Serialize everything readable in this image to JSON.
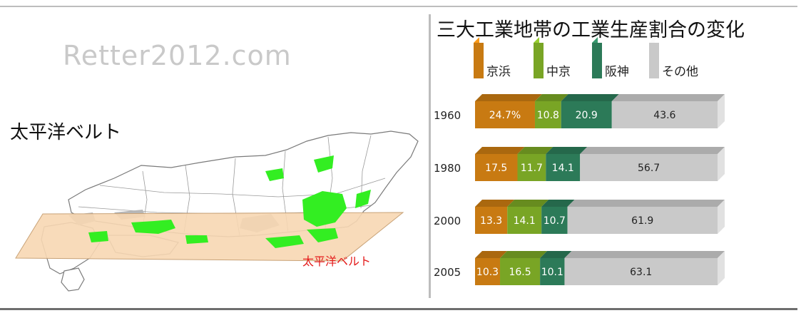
{
  "watermark": "Retter2012.com",
  "map": {
    "title": "太平洋ベルト",
    "belt_label": "太平洋ベルト"
  },
  "colors": {
    "keihin": "#c87a12",
    "chukyo": "#79a525",
    "hanshin": "#2c7a58",
    "other": "#c9c9c9",
    "belt": "#f7d7b2",
    "industrial": "#33ee22",
    "belt_label": "#e41b1b"
  },
  "chart_data": {
    "type": "bar",
    "orientation": "horizontal-stacked",
    "title": "三大工業地帯の工業生産割合の変化",
    "categories": [
      "1960",
      "1980",
      "2000",
      "2005"
    ],
    "series": [
      {
        "name": "京浜",
        "values": [
          24.7,
          17.5,
          13.3,
          10.3
        ],
        "labels": [
          "24.7%",
          "17.5",
          "13.3",
          "10.3"
        ]
      },
      {
        "name": "中京",
        "values": [
          10.8,
          11.7,
          14.1,
          16.5
        ],
        "labels": [
          "10.8",
          "11.7",
          "14.1",
          "16.5"
        ]
      },
      {
        "name": "阪神",
        "values": [
          20.9,
          14.1,
          10.7,
          10.1
        ],
        "labels": [
          "20.9",
          "14.1",
          "10.7",
          "10.1"
        ]
      },
      {
        "name": "その他",
        "values": [
          43.6,
          56.7,
          61.9,
          63.1
        ],
        "labels": [
          "43.6",
          "56.7",
          "61.9",
          "63.1"
        ]
      }
    ],
    "legend_position": "top",
    "grid": false
  }
}
